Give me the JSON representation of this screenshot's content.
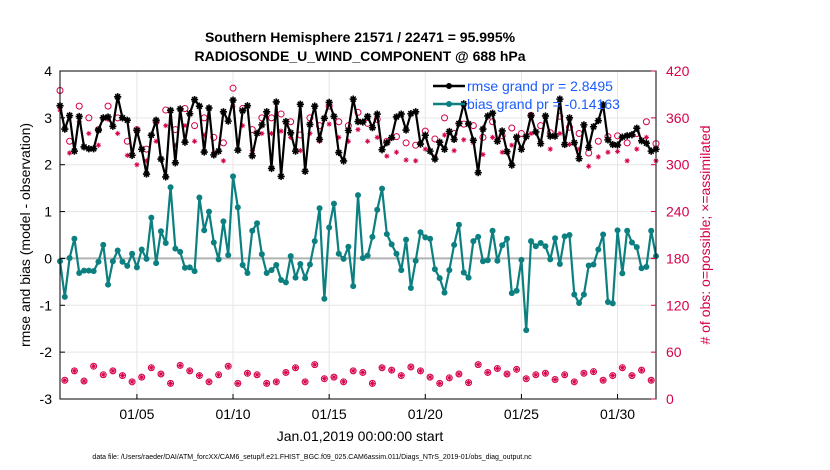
{
  "chart_data": {
    "type": "line",
    "title": "Southern Hemisphere 21571 / 22471 = 95.995%",
    "subtitle": "RADIOSONDE_U_WIND_COMPONENT @ 688 hPa",
    "xlabel": "Jan.01,2019 00:00:00 start",
    "ylabel": "rmse and bias (model - observation)",
    "ylabel_right": "# of obs: o=possible; ×=assimilated",
    "footer": "data file: /Users/raeder/DAI/ATM_forcXX/CAM6_setup/f.e21.FHIST_BGC.f09_025.CAM6assim.011/Diags_NTrS_2019-01/obs_diag_output.nc",
    "xlim": [
      1.0,
      32.0
    ],
    "ylim": [
      -3,
      4
    ],
    "ylim_right": [
      0,
      420
    ],
    "x_ticks": [
      5,
      10,
      15,
      20,
      25,
      30
    ],
    "x_tick_labels": [
      "01/05",
      "01/10",
      "01/15",
      "01/20",
      "01/25",
      "01/30"
    ],
    "y_ticks": [
      -3,
      -2,
      -1,
      0,
      1,
      2,
      3,
      4
    ],
    "y_tick_labels": [
      "-3",
      "-2",
      "-1",
      "0",
      "1",
      "2",
      "3",
      "4"
    ],
    "y_ticks_right": [
      0,
      60,
      120,
      180,
      240,
      300,
      360,
      420
    ],
    "y_tick_labels_right": [
      "0",
      "60",
      "120",
      "180",
      "240",
      "300",
      "360",
      "420"
    ],
    "grid": true,
    "legend_position": "top-right",
    "colors": {
      "rmse": "#000000",
      "bias": "#0c8080",
      "obs": "#d6004c",
      "zero_line": "#b3b3b3",
      "legend_text": "#1a5cff",
      "grid": "#e6e6e6"
    },
    "series": [
      {
        "name": "rmse grand pr = 2.8495",
        "marker": "asterisk",
        "x": [
          1.0,
          1.25,
          1.5,
          1.75,
          2.0,
          2.25,
          2.5,
          2.75,
          3.0,
          3.25,
          3.5,
          3.75,
          4.0,
          4.25,
          4.5,
          4.75,
          5.0,
          5.25,
          5.5,
          5.75,
          6.0,
          6.25,
          6.5,
          6.75,
          7.0,
          7.25,
          7.5,
          7.75,
          8.0,
          8.25,
          8.5,
          8.75,
          9.0,
          9.25,
          9.5,
          9.75,
          10.0,
          10.25,
          10.5,
          10.75,
          11.0,
          11.25,
          11.5,
          11.75,
          12.0,
          12.25,
          12.5,
          12.75,
          13.0,
          13.25,
          13.5,
          13.75,
          14.0,
          14.25,
          14.5,
          14.75,
          15.0,
          15.25,
          15.5,
          15.75,
          16.0,
          16.25,
          16.5,
          16.75,
          17.0,
          17.25,
          17.5,
          17.75,
          18.0,
          18.25,
          18.5,
          18.75,
          19.0,
          19.25,
          19.5,
          19.75,
          20.0,
          20.25,
          20.5,
          20.75,
          21.0,
          21.25,
          21.5,
          21.75,
          22.0,
          22.25,
          22.5,
          22.75,
          23.0,
          23.25,
          23.5,
          23.75,
          24.0,
          24.25,
          24.5,
          24.75,
          25.0,
          25.25,
          25.5,
          25.75,
          26.0,
          26.25,
          26.5,
          26.75,
          27.0,
          27.25,
          27.5,
          27.75,
          28.0,
          28.25,
          28.5,
          28.75,
          29.0,
          29.25,
          29.5,
          29.75,
          30.0,
          30.25,
          30.5,
          30.75,
          31.0,
          31.25,
          31.5,
          31.75,
          32.0
        ],
        "values": [
          3.26,
          2.76,
          3.05,
          2.29,
          3.03,
          2.38,
          2.34,
          2.34,
          2.74,
          3.0,
          3.02,
          2.82,
          3.45,
          3.0,
          2.95,
          2.2,
          2.73,
          2.33,
          1.8,
          2.63,
          2.95,
          2.12,
          1.74,
          3.16,
          2.04,
          3.19,
          2.48,
          3.09,
          3.39,
          3.25,
          2.27,
          3.21,
          2.21,
          2.29,
          3.13,
          2.93,
          3.38,
          2.31,
          3.15,
          3.26,
          2.19,
          2.67,
          2.85,
          3.13,
          1.92,
          3.34,
          1.75,
          2.92,
          2.68,
          2.29,
          3.29,
          1.86,
          2.86,
          3.25,
          2.54,
          2.99,
          3.33,
          3.03,
          2.26,
          2.08,
          2.73,
          3.4,
          2.92,
          2.91,
          3.03,
          2.79,
          3.08,
          2.32,
          2.47,
          2.58,
          3.02,
          3.08,
          2.74,
          3.09,
          3.13,
          2.44,
          2.63,
          2.29,
          2.12,
          2.48,
          2.33,
          2.71,
          2.54,
          2.88,
          3.3,
          2.87,
          2.52,
          1.83,
          2.76,
          3.04,
          3.1,
          2.5,
          2.72,
          2.28,
          1.99,
          2.59,
          2.33,
          2.6,
          3.05,
          2.7,
          2.45,
          3.04,
          2.61,
          2.61,
          3.4,
          2.43,
          3.0,
          2.47,
          2.13,
          2.85,
          2.37,
          2.81,
          2.94,
          3.28,
          2.53,
          2.43,
          2.42,
          2.59,
          2.62,
          2.64,
          2.78,
          2.51,
          2.46,
          2.29,
          2.33
        ]
      },
      {
        "name": "bias grand pr = -0.14163",
        "marker": "circle",
        "x": [
          1.0,
          1.25,
          1.5,
          1.75,
          2.0,
          2.25,
          2.5,
          2.75,
          3.0,
          3.25,
          3.5,
          3.75,
          4.0,
          4.25,
          4.5,
          4.75,
          5.0,
          5.25,
          5.5,
          5.75,
          6.0,
          6.25,
          6.5,
          6.75,
          7.0,
          7.25,
          7.5,
          7.75,
          8.0,
          8.25,
          8.5,
          8.75,
          9.0,
          9.25,
          9.5,
          9.75,
          10.0,
          10.25,
          10.5,
          10.75,
          11.0,
          11.25,
          11.5,
          11.75,
          12.0,
          12.25,
          12.5,
          12.75,
          13.0,
          13.25,
          13.5,
          13.75,
          14.0,
          14.25,
          14.5,
          14.75,
          15.0,
          15.25,
          15.5,
          15.75,
          16.0,
          16.25,
          16.5,
          16.75,
          17.0,
          17.25,
          17.5,
          17.75,
          18.0,
          18.25,
          18.5,
          18.75,
          19.0,
          19.25,
          19.5,
          19.75,
          20.0,
          20.25,
          20.5,
          20.75,
          21.0,
          21.25,
          21.5,
          21.75,
          22.0,
          22.25,
          22.5,
          22.75,
          23.0,
          23.25,
          23.5,
          23.75,
          24.0,
          24.25,
          24.5,
          24.75,
          25.0,
          25.25,
          25.5,
          25.75,
          26.0,
          26.25,
          26.5,
          26.75,
          27.0,
          27.25,
          27.5,
          27.75,
          28.0,
          28.25,
          28.5,
          28.75,
          29.0,
          29.25,
          29.5,
          29.75,
          30.0,
          30.25,
          30.5,
          30.75,
          31.0,
          31.25,
          31.5,
          31.75,
          32.0
        ],
        "values": [
          -0.06,
          -0.82,
          0.01,
          0.42,
          -0.31,
          -0.26,
          -0.26,
          -0.27,
          -0.07,
          0.29,
          -0.56,
          -0.06,
          0.17,
          -0.07,
          -0.16,
          0.1,
          -0.19,
          0.19,
          -0.01,
          0.87,
          -0.1,
          0.58,
          0.33,
          1.52,
          0.21,
          0.14,
          -0.2,
          -0.19,
          -0.27,
          1.3,
          0.6,
          1.0,
          0.34,
          -0.02,
          0.79,
          0.07,
          1.75,
          1.09,
          -0.14,
          -0.31,
          0.59,
          0.75,
          0.09,
          -0.31,
          -0.25,
          -0.14,
          -0.46,
          -0.51,
          0.05,
          -0.41,
          -0.12,
          -0.42,
          -0.13,
          0.37,
          1.07,
          -0.86,
          0.66,
          1.17,
          0.1,
          -0.01,
          0.25,
          -0.59,
          1.35,
          0.01,
          0.06,
          0.46,
          1.04,
          1.49,
          0.52,
          0.3,
          0.1,
          -0.25,
          0.4,
          -0.63,
          -0.05,
          0.56,
          0.45,
          0.42,
          -0.23,
          -0.42,
          -0.73,
          -0.25,
          0.29,
          0.72,
          -0.3,
          -0.41,
          0.37,
          0.46,
          -0.06,
          -0.04,
          0.59,
          -0.05,
          0.28,
          0.42,
          -0.74,
          -0.69,
          -0.03,
          -1.53,
          0.37,
          0.26,
          0.33,
          0.26,
          -0.02,
          0.43,
          -0.12,
          0.47,
          0.5,
          -0.77,
          -0.95,
          -0.77,
          -0.15,
          -0.13,
          0.19,
          0.51,
          -0.93,
          -0.96,
          0.6,
          -0.32,
          0.59,
          0.34,
          0.24,
          -0.21,
          -0.18,
          0.59,
          0.05
        ]
      },
      {
        "name": "obs possible",
        "marker": "open-circle",
        "axis": "right",
        "x": [
          1.0,
          1.25,
          1.5,
          1.75,
          2.0,
          2.25,
          2.5,
          2.75,
          3.0,
          3.25,
          3.5,
          3.75,
          4.0,
          4.25,
          4.5,
          4.75,
          5.0,
          5.25,
          5.5,
          5.75,
          6.0,
          6.25,
          6.5,
          6.75,
          7.0,
          7.25,
          7.5,
          7.75,
          8.0,
          8.25,
          8.5,
          8.75,
          9.0,
          9.25,
          9.5,
          9.75,
          10.0,
          10.25,
          10.5,
          10.75,
          11.0,
          11.25,
          11.5,
          11.75,
          12.0,
          12.25,
          12.5,
          12.75,
          13.0,
          13.25,
          13.5,
          13.75,
          14.0,
          14.25,
          14.5,
          14.75,
          15.0,
          15.25,
          15.5,
          15.75,
          16.0,
          16.25,
          16.5,
          16.75,
          17.0,
          17.25,
          17.5,
          17.75,
          18.0,
          18.25,
          18.5,
          18.75,
          19.0,
          19.25,
          19.5,
          19.75,
          20.0,
          20.25,
          20.5,
          20.75,
          21.0,
          21.25,
          21.5,
          21.75,
          22.0,
          22.25,
          22.5,
          22.75,
          23.0,
          23.25,
          23.5,
          23.75,
          24.0,
          24.25,
          24.5,
          24.75,
          25.0,
          25.25,
          25.5,
          25.75,
          26.0,
          26.25,
          26.5,
          26.75,
          27.0,
          27.25,
          27.5,
          27.75,
          28.0,
          28.25,
          28.5,
          28.75,
          29.0,
          29.25,
          29.5,
          29.75,
          30.0,
          30.25,
          30.5,
          30.75,
          31.0,
          31.25,
          31.5,
          31.75,
          32.0
        ],
        "values": [
          395,
          24,
          330,
          36,
          375,
          23,
          360,
          42,
          345,
          31,
          375,
          36,
          360,
          30,
          330,
          22,
          345,
          28,
          320,
          40,
          355,
          32,
          370,
          20,
          345,
          43,
          372,
          36,
          350,
          30,
          360,
          22,
          335,
          31,
          328,
          42,
          398,
          20,
          372,
          33,
          345,
          31,
          360,
          20,
          360,
          22,
          365,
          34,
          355,
          40,
          338,
          22,
          360,
          44,
          350,
          26,
          375,
          28,
          355,
          22,
          350,
          36,
          367,
          34,
          353,
          20,
          358,
          40,
          330,
          37,
          336,
          30,
          328,
          41,
          325,
          36,
          343,
          28,
          333,
          20,
          360,
          27,
          340,
          32,
          352,
          21,
          350,
          44,
          335,
          34,
          355,
          39,
          337,
          32,
          347,
          38,
          340,
          26,
          363,
          31,
          350,
          33,
          341,
          25,
          362,
          31,
          348,
          22,
          340,
          33,
          315,
          35,
          330,
          24,
          336,
          30,
          337,
          40,
          328,
          30,
          340,
          37,
          355,
          24,
          327
        ]
      },
      {
        "name": "obs assimilated",
        "marker": "asterisk",
        "axis": "right",
        "x": [
          1.0,
          1.25,
          1.5,
          1.75,
          2.0,
          2.25,
          2.5,
          2.75,
          3.0,
          3.25,
          3.5,
          3.75,
          4.0,
          4.25,
          4.5,
          4.75,
          5.0,
          5.25,
          5.5,
          5.75,
          6.0,
          6.25,
          6.5,
          6.75,
          7.0,
          7.25,
          7.5,
          7.75,
          8.0,
          8.25,
          8.5,
          8.75,
          9.0,
          9.25,
          9.5,
          9.75,
          10.0,
          10.25,
          10.5,
          10.75,
          11.0,
          11.25,
          11.5,
          11.75,
          12.0,
          12.25,
          12.5,
          12.75,
          13.0,
          13.25,
          13.5,
          13.75,
          14.0,
          14.25,
          14.5,
          14.75,
          15.0,
          15.25,
          15.5,
          15.75,
          16.0,
          16.25,
          16.5,
          16.75,
          17.0,
          17.25,
          17.5,
          17.75,
          18.0,
          18.25,
          18.5,
          18.75,
          19.0,
          19.25,
          19.5,
          19.75,
          20.0,
          20.25,
          20.5,
          20.75,
          21.0,
          21.25,
          21.5,
          21.75,
          22.0,
          22.25,
          22.5,
          22.75,
          23.0,
          23.25,
          23.5,
          23.75,
          24.0,
          24.25,
          24.5,
          24.75,
          25.0,
          25.25,
          25.5,
          25.75,
          26.0,
          26.25,
          26.5,
          26.75,
          27.0,
          27.25,
          27.5,
          27.75,
          28.0,
          28.25,
          28.5,
          28.75,
          29.0,
          29.25,
          29.5,
          29.75,
          30.0,
          30.25,
          30.5,
          30.75,
          31.0,
          31.25,
          31.5,
          31.75,
          32.0
        ],
        "values": [
          370,
          24,
          315,
          36,
          355,
          23,
          340,
          42,
          325,
          31,
          358,
          36,
          340,
          30,
          312,
          22,
          300,
          28,
          305,
          40,
          330,
          32,
          350,
          20,
          325,
          43,
          350,
          36,
          330,
          30,
          338,
          22,
          315,
          31,
          305,
          42,
          375,
          20,
          350,
          33,
          318,
          31,
          340,
          20,
          340,
          22,
          343,
          34,
          335,
          40,
          318,
          22,
          340,
          44,
          330,
          26,
          352,
          28,
          335,
          22,
          330,
          36,
          345,
          34,
          330,
          20,
          335,
          40,
          311,
          37,
          316,
          30,
          306,
          41,
          305,
          36,
          320,
          28,
          310,
          20,
          338,
          27,
          318,
          32,
          332,
          21,
          328,
          44,
          313,
          34,
          335,
          39,
          316,
          32,
          325,
          38,
          320,
          26,
          340,
          31,
          328,
          33,
          320,
          25,
          340,
          31,
          326,
          22,
          320,
          33,
          298,
          35,
          310,
          24,
          316,
          30,
          317,
          40,
          305,
          30,
          320,
          37,
          335,
          24,
          305
        ]
      }
    ]
  }
}
